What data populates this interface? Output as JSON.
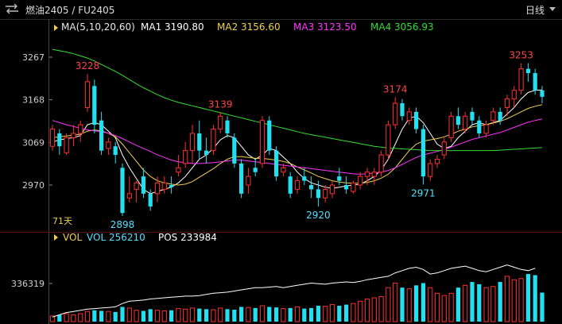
{
  "header": {
    "title": "燃油2405 / FU2405",
    "period": "日线"
  },
  "main_chart": {
    "legend": [
      {
        "text": "MA(5,10,20,60)",
        "color": "#e8e8e8"
      },
      {
        "text": "MA1 3190.80",
        "color": "#ffffff"
      },
      {
        "text": "MA2 3156.60",
        "color": "#f0d050"
      },
      {
        "text": "MA3 3123.50",
        "color": "#ff33ff"
      },
      {
        "text": "MA4 3056.93",
        "color": "#33dd33"
      }
    ],
    "y_ticks": [
      "3267",
      "3168",
      "3069",
      "2970"
    ],
    "days_label": "71天",
    "annotations": [
      {
        "text": "3228",
        "color": "#ff4444"
      },
      {
        "text": "3139",
        "color": "#ff4444"
      },
      {
        "text": "3174",
        "color": "#ff4444"
      },
      {
        "text": "3253",
        "color": "#ff4444"
      },
      {
        "text": "2898",
        "color": "#55e0ff"
      },
      {
        "text": "2920",
        "color": "#55e0ff"
      },
      {
        "text": "2971",
        "color": "#55e0ff"
      }
    ]
  },
  "volume_chart": {
    "legend": [
      {
        "text": "VOL",
        "color": "#f0d050"
      },
      {
        "text": "VOL 256210",
        "color": "#55e0ff"
      },
      {
        "text": "POS 233984",
        "color": "#ffffff"
      }
    ],
    "y_tick": "336319"
  },
  "colors": {
    "up": "#ff3030",
    "down": "#22e0f0",
    "ma1": "#ffffff",
    "ma2": "#f0d050",
    "ma3": "#ff33ff",
    "ma4": "#33dd33",
    "pos": "#ffffff"
  },
  "chart_data": [
    {
      "type": "candlestick",
      "title": "燃油2405 / FU2405",
      "ylim": [
        2880,
        3300
      ],
      "y_ticks": [
        3267,
        3168,
        3069,
        2970
      ],
      "days": 71,
      "ohlc": [
        [
          3060,
          3110,
          3050,
          3100
        ],
        [
          3090,
          3100,
          3040,
          3060
        ],
        [
          3045,
          3090,
          3040,
          3080
        ],
        [
          3080,
          3110,
          3060,
          3090
        ],
        [
          3090,
          3120,
          3070,
          3110
        ],
        [
          3150,
          3228,
          3140,
          3210
        ],
        [
          3200,
          3215,
          3090,
          3110
        ],
        [
          3120,
          3140,
          3040,
          3050
        ],
        [
          3055,
          3080,
          3040,
          3070
        ],
        [
          3060,
          3070,
          3020,
          3040
        ],
        [
          3010,
          3020,
          2898,
          2905
        ],
        [
          2940,
          2990,
          2930,
          2950
        ],
        [
          2960,
          2980,
          2930,
          2975
        ],
        [
          2990,
          3010,
          2940,
          2950
        ],
        [
          2950,
          2960,
          2910,
          2920
        ],
        [
          2950,
          2990,
          2930,
          2975
        ],
        [
          2960,
          2990,
          2950,
          2975
        ],
        [
          2970,
          2990,
          2950,
          2965
        ],
        [
          3000,
          3040,
          2990,
          3010
        ],
        [
          3020,
          3070,
          3010,
          3050
        ],
        [
          3050,
          3110,
          3020,
          3090
        ],
        [
          3090,
          3120,
          3030,
          3050
        ],
        [
          3050,
          3080,
          3020,
          3040
        ],
        [
          3050,
          3110,
          3040,
          3100
        ],
        [
          3100,
          3139,
          3090,
          3130
        ],
        [
          3120,
          3130,
          3080,
          3090
        ],
        [
          3080,
          3090,
          3010,
          3020
        ],
        [
          3020,
          3030,
          2940,
          2950
        ],
        [
          2970,
          3010,
          2950,
          2990
        ],
        [
          3010,
          3030,
          2990,
          3000
        ],
        [
          3020,
          3130,
          3010,
          3120
        ],
        [
          3120,
          3130,
          3040,
          3050
        ],
        [
          3050,
          3060,
          2980,
          2990
        ],
        [
          3000,
          3020,
          2990,
          3010
        ],
        [
          2990,
          3000,
          2940,
          2950
        ],
        [
          2960,
          2990,
          2950,
          2980
        ],
        [
          2990,
          3010,
          2970,
          2980
        ],
        [
          2970,
          2990,
          2940,
          2960
        ],
        [
          2960,
          2980,
          2920,
          2940
        ],
        [
          2940,
          2970,
          2930,
          2960
        ],
        [
          2950,
          2980,
          2940,
          2970
        ],
        [
          2990,
          3010,
          2970,
          2980
        ],
        [
          2970,
          2990,
          2950,
          2960
        ],
        [
          2955,
          2980,
          2950,
          2975
        ],
        [
          2970,
          3000,
          2960,
          2990
        ],
        [
          2990,
          3010,
          2970,
          3000
        ],
        [
          2990,
          3010,
          2970,
          3000
        ],
        [
          3000,
          3050,
          2990,
          3040
        ],
        [
          3040,
          3120,
          3030,
          3110
        ],
        [
          3110,
          3174,
          3100,
          3160
        ],
        [
          3160,
          3170,
          3120,
          3130
        ],
        [
          3120,
          3150,
          3110,
          3140
        ],
        [
          3140,
          3150,
          3090,
          3100
        ],
        [
          3100,
          3110,
          2971,
          2990
        ],
        [
          2990,
          3030,
          2980,
          3020
        ],
        [
          3020,
          3040,
          3010,
          3030
        ],
        [
          3040,
          3080,
          3030,
          3070
        ],
        [
          3080,
          3140,
          3070,
          3130
        ],
        [
          3130,
          3150,
          3100,
          3110
        ],
        [
          3100,
          3140,
          3090,
          3130
        ],
        [
          3140,
          3150,
          3110,
          3120
        ],
        [
          3120,
          3130,
          3080,
          3090
        ],
        [
          3090,
          3120,
          3080,
          3110
        ],
        [
          3120,
          3150,
          3110,
          3140
        ],
        [
          3140,
          3150,
          3110,
          3120
        ],
        [
          3150,
          3180,
          3130,
          3170
        ],
        [
          3170,
          3200,
          3150,
          3190
        ],
        [
          3190,
          3253,
          3180,
          3240
        ],
        [
          3240,
          3253,
          3210,
          3230
        ],
        [
          3230,
          3240,
          3180,
          3190
        ],
        [
          3190,
          3200,
          3160,
          3175
        ]
      ],
      "series": [
        {
          "name": "MA1",
          "values": [
            3070,
            3075,
            3078,
            3080,
            3085,
            3110,
            3115,
            3110,
            3095,
            3080,
            3040,
            3010,
            2985,
            2960,
            2950,
            2955,
            2960,
            2965,
            2975,
            2990,
            3010,
            3030,
            3040,
            3055,
            3075,
            3085,
            3080,
            3060,
            3040,
            3030,
            3040,
            3055,
            3050,
            3035,
            3020,
            3000,
            2985,
            2975,
            2970,
            2965,
            2962,
            2965,
            2968,
            2970,
            2972,
            2980,
            2990,
            3005,
            3030,
            3065,
            3100,
            3125,
            3130,
            3115,
            3090,
            3065,
            3055,
            3060,
            3080,
            3095,
            3110,
            3115,
            3110,
            3115,
            3120,
            3135,
            3150,
            3170,
            3185,
            3190,
            3190.8
          ]
        },
        {
          "name": "MA2",
          "values": [
            3080,
            3082,
            3084,
            3086,
            3088,
            3095,
            3098,
            3096,
            3090,
            3082,
            3065,
            3045,
            3025,
            3005,
            2990,
            2980,
            2975,
            2972,
            2970,
            2972,
            2978,
            2988,
            2998,
            3008,
            3020,
            3030,
            3036,
            3036,
            3034,
            3032,
            3032,
            3030,
            3028,
            3025,
            3020,
            3012,
            3005,
            2998,
            2990,
            2985,
            2980,
            2977,
            2975,
            2974,
            2974,
            2976,
            2980,
            2986,
            2995,
            3010,
            3030,
            3050,
            3065,
            3072,
            3075,
            3078,
            3082,
            3088,
            3095,
            3100,
            3105,
            3108,
            3110,
            3114,
            3118,
            3124,
            3132,
            3140,
            3148,
            3153,
            3156.6
          ]
        },
        {
          "name": "MA3",
          "values": [
            3120,
            3115,
            3110,
            3106,
            3102,
            3098,
            3096,
            3094,
            3090,
            3085,
            3078,
            3070,
            3062,
            3055,
            3048,
            3040,
            3034,
            3028,
            3024,
            3022,
            3020,
            3020,
            3021,
            3022,
            3024,
            3026,
            3028,
            3028,
            3026,
            3024,
            3022,
            3020,
            3018,
            3016,
            3014,
            3012,
            3010,
            3008,
            3006,
            3004,
            3002,
            3000,
            2998,
            2996,
            2995,
            2996,
            2998,
            3000,
            3004,
            3010,
            3018,
            3026,
            3034,
            3040,
            3044,
            3048,
            3052,
            3058,
            3064,
            3070,
            3076,
            3080,
            3084,
            3088,
            3092,
            3098,
            3104,
            3110,
            3116,
            3120,
            3123.5
          ]
        },
        {
          "name": "MA4",
          "values": [
            3285,
            3282,
            3279,
            3275,
            3270,
            3265,
            3258,
            3250,
            3242,
            3234,
            3225,
            3215,
            3205,
            3196,
            3188,
            3180,
            3173,
            3167,
            3162,
            3158,
            3154,
            3150,
            3146,
            3142,
            3138,
            3134,
            3130,
            3126,
            3122,
            3118,
            3114,
            3110,
            3106,
            3102,
            3098,
            3094,
            3090,
            3087,
            3084,
            3081,
            3078,
            3075,
            3072,
            3069,
            3066,
            3063,
            3060,
            3058,
            3056,
            3055,
            3054,
            3053,
            3052,
            3051,
            3050,
            3050,
            3050,
            3050,
            3050,
            3050,
            3050,
            3050,
            3050,
            3050,
            3051,
            3052,
            3053,
            3054,
            3055,
            3056,
            3056.93
          ]
        }
      ]
    },
    {
      "type": "bar",
      "title": "VOL",
      "y_ticks": [
        336319
      ],
      "series": [
        {
          "name": "VOL",
          "values": [
            50000,
            60000,
            70000,
            60000,
            70000,
            90000,
            100000,
            95000,
            90000,
            85000,
            130000,
            120000,
            100000,
            95000,
            110000,
            100000,
            95000,
            100000,
            115000,
            110000,
            120000,
            115000,
            110000,
            105000,
            120000,
            110000,
            105000,
            130000,
            125000,
            120000,
            140000,
            130000,
            125000,
            115000,
            120000,
            130000,
            115000,
            120000,
            140000,
            135000,
            150000,
            140000,
            150000,
            160000,
            180000,
            200000,
            210000,
            220000,
            300000,
            340000,
            300000,
            290000,
            320000,
            340000,
            300000,
            250000,
            230000,
            250000,
            300000,
            320000,
            350000,
            330000,
            300000,
            310000,
            350000,
            400000,
            370000,
            380000,
            420000,
            410000,
            256210
          ]
        },
        {
          "name": "POS",
          "values": [
            40000,
            60000,
            80000,
            90000,
            100000,
            110000,
            115000,
            120000,
            125000,
            130000,
            160000,
            180000,
            185000,
            190000,
            200000,
            205000,
            210000,
            215000,
            220000,
            225000,
            225000,
            230000,
            240000,
            250000,
            255000,
            260000,
            270000,
            280000,
            290000,
            300000,
            300000,
            305000,
            310000,
            300000,
            310000,
            320000,
            330000,
            340000,
            335000,
            330000,
            340000,
            345000,
            350000,
            345000,
            355000,
            370000,
            380000,
            390000,
            400000,
            430000,
            450000,
            470000,
            480000,
            460000,
            420000,
            430000,
            450000,
            470000,
            480000,
            490000,
            470000,
            450000,
            440000,
            460000,
            480000,
            500000,
            480000,
            460000,
            450000,
            470000,
            233984
          ]
        }
      ]
    }
  ]
}
